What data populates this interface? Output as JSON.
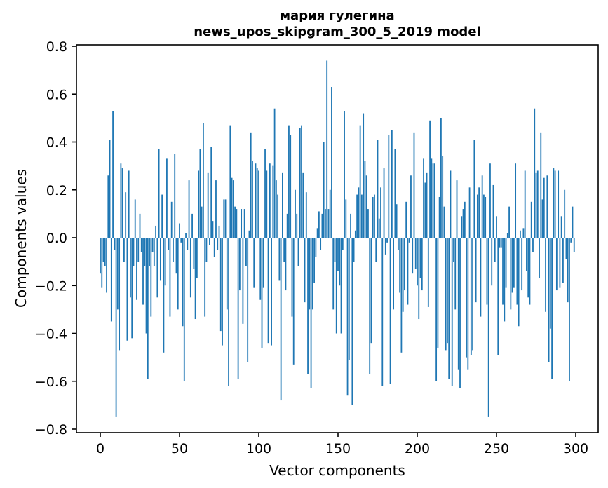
{
  "title": {
    "line1": "мария гулегина",
    "line2": "news_upos_skipgram_300_5_2019 model"
  },
  "chart_data": {
    "type": "bar",
    "title": "мария гулегина\nnews_upos_skipgram_300_5_2019 model",
    "xlabel": "Vector components",
    "ylabel": "Components values",
    "legend": null,
    "grid": false,
    "bar_color": "#1f77b4",
    "xlim": [
      -15,
      314
    ],
    "ylim": [
      -0.8,
      0.8
    ],
    "x_ticks": [
      0,
      50,
      100,
      150,
      200,
      250,
      300
    ],
    "x_tick_labels": [
      "0",
      "50",
      "100",
      "150",
      "200",
      "250",
      "300"
    ],
    "y_ticks": [
      -0.8,
      -0.6,
      -0.4,
      -0.2,
      0.0,
      0.2,
      0.4,
      0.6,
      0.8
    ],
    "y_tick_labels": [
      "−0.8",
      "−0.6",
      "−0.4",
      "−0.2",
      "0.0",
      "0.2",
      "0.4",
      "0.6",
      "0.8"
    ],
    "n_bars": 300,
    "values": [
      -0.15,
      -0.21,
      -0.1,
      -0.12,
      -0.23,
      0.26,
      0.41,
      -0.35,
      0.53,
      -0.05,
      -0.75,
      -0.3,
      -0.47,
      0.31,
      0.29,
      -0.1,
      0.19,
      -0.43,
      0.28,
      -0.25,
      -0.42,
      -0.12,
      0.16,
      -0.26,
      -0.1,
      0.1,
      -0.06,
      -0.28,
      -0.12,
      -0.4,
      -0.59,
      -0.12,
      -0.33,
      -0.06,
      -0.12,
      0.05,
      -0.25,
      0.37,
      -0.18,
      0.18,
      -0.48,
      -0.2,
      0.33,
      -0.05,
      -0.33,
      0.15,
      -0.1,
      0.35,
      -0.15,
      -0.3,
      0.06,
      -0.02,
      -0.37,
      -0.6,
      0.02,
      -0.05,
      0.24,
      -0.25,
      0.1,
      -0.13,
      -0.34,
      -0.17,
      0.28,
      0.37,
      0.13,
      0.48,
      -0.33,
      -0.1,
      0.27,
      -0.03,
      0.38,
      0.07,
      -0.08,
      0.24,
      -0.05,
      0.05,
      -0.39,
      -0.45,
      0.16,
      0.16,
      -0.3,
      -0.62,
      0.47,
      0.25,
      0.24,
      0.13,
      0.12,
      -0.59,
      -0.22,
      0.12,
      -0.36,
      0.12,
      -0.12,
      -0.52,
      0.03,
      0.44,
      0.32,
      -0.21,
      0.31,
      0.29,
      0.28,
      -0.26,
      -0.46,
      -0.21,
      0.37,
      0.28,
      -0.44,
      0.31,
      -0.45,
      0.3,
      0.54,
      0.24,
      0.18,
      -0.18,
      -0.68,
      0.27,
      -0.1,
      -0.22,
      0.1,
      0.47,
      0.43,
      -0.33,
      -0.53,
      0.2,
      0.1,
      -0.12,
      0.46,
      0.47,
      0.27,
      -0.27,
      0.19,
      -0.57,
      -0.3,
      -0.63,
      -0.3,
      -0.19,
      -0.08,
      0.04,
      0.11,
      -0.05,
      0.1,
      0.4,
      0.12,
      0.74,
      0.12,
      0.2,
      0.63,
      -0.3,
      -0.1,
      -0.4,
      -0.14,
      -0.2,
      -0.4,
      -0.05,
      0.53,
      0.16,
      -0.66,
      -0.51,
      0.1,
      -0.7,
      -0.1,
      0.03,
      0.18,
      0.21,
      0.47,
      0.18,
      0.52,
      0.32,
      0.26,
      0.12,
      -0.57,
      -0.44,
      0.17,
      0.18,
      -0.1,
      0.41,
      0.08,
      0.21,
      -0.62,
      0.29,
      -0.07,
      -0.02,
      0.43,
      -0.61,
      0.45,
      -0.3,
      0.37,
      0.14,
      -0.05,
      -0.23,
      -0.48,
      -0.31,
      -0.22,
      0.15,
      -0.28,
      -0.02,
      0.26,
      -0.15,
      0.44,
      -0.13,
      -0.2,
      -0.34,
      -0.17,
      -0.22,
      0.33,
      0.23,
      0.27,
      -0.29,
      0.49,
      0.33,
      0.31,
      0.31,
      -0.6,
      -0.46,
      0.17,
      0.5,
      0.34,
      0.13,
      -0.47,
      -0.44,
      -0.59,
      0.28,
      -0.62,
      -0.1,
      -0.3,
      0.24,
      -0.55,
      -0.63,
      0.09,
      0.12,
      0.15,
      -0.5,
      -0.55,
      0.21,
      -0.49,
      -0.47,
      0.41,
      -0.27,
      0.18,
      0.21,
      -0.33,
      0.26,
      0.18,
      0.17,
      -0.28,
      -0.75,
      0.31,
      -0.2,
      0.22,
      -0.1,
      0.09,
      -0.49,
      -0.04,
      -0.04,
      -0.28,
      -0.35,
      -0.21,
      0.02,
      0.13,
      -0.3,
      -0.23,
      -0.21,
      0.31,
      -0.28,
      -0.37,
      0.03,
      -0.22,
      0.04,
      0.28,
      -0.14,
      -0.25,
      -0.28,
      0.15,
      -0.06,
      0.54,
      0.27,
      0.28,
      -0.17,
      0.44,
      0.16,
      0.25,
      -0.31,
      0.26,
      -0.52,
      -0.38,
      -0.59,
      0.29,
      0.28,
      -0.22,
      0.28,
      -0.21,
      0.09,
      -0.19,
      0.2,
      -0.09,
      -0.27,
      -0.6,
      -0.02,
      0.13,
      -0.06
    ]
  }
}
